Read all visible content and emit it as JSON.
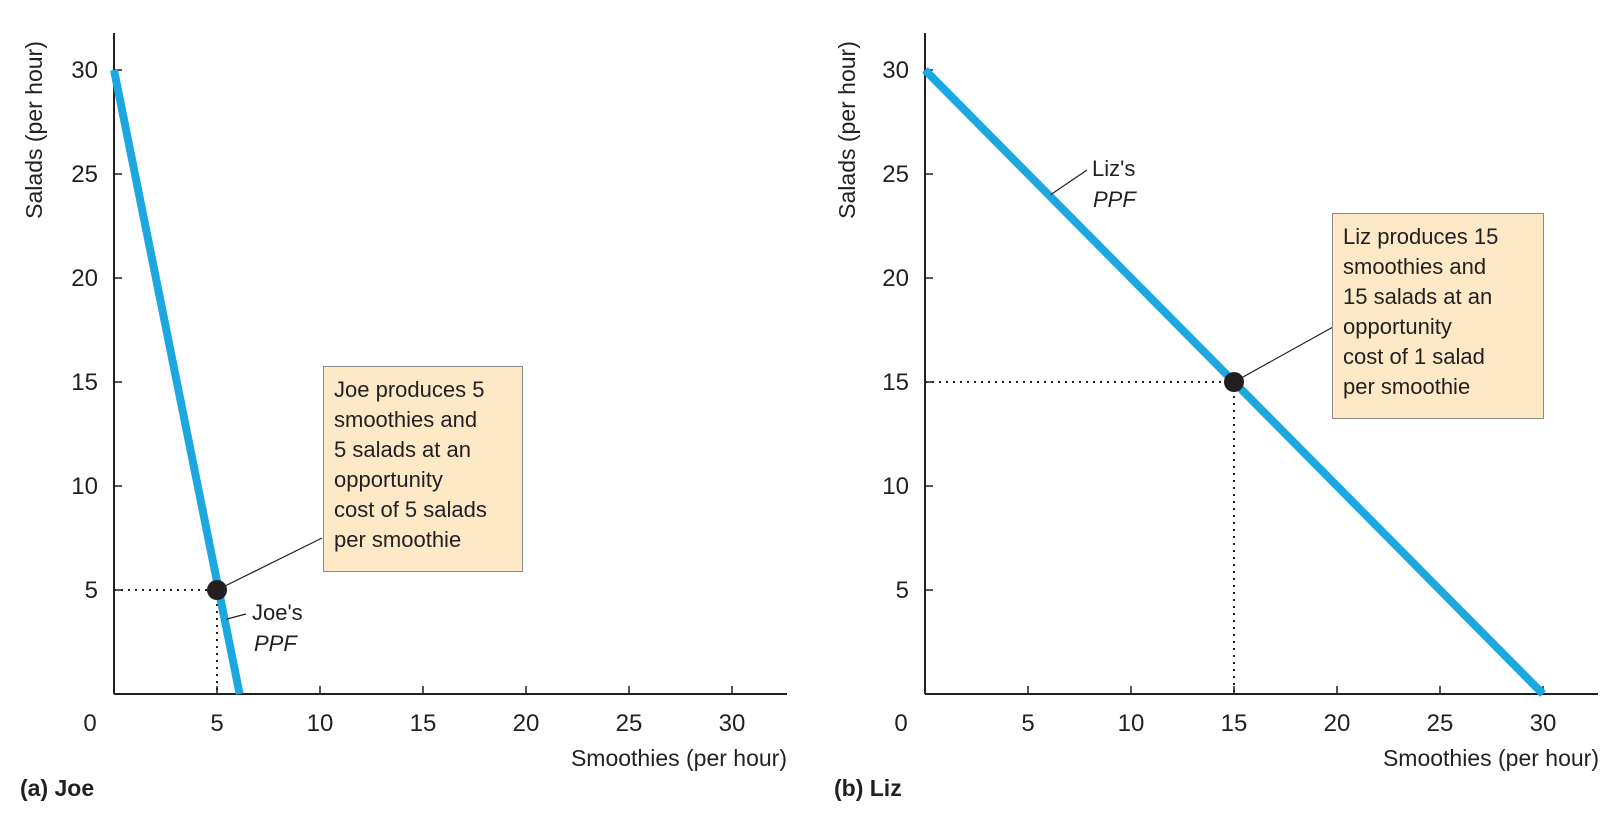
{
  "chart_data": [
    {
      "type": "line",
      "panel_label": "(a) Joe",
      "xlabel": "Smoothies (per hour)",
      "ylabel": "Salads (per hour)",
      "xlim": [
        0,
        32.5
      ],
      "ylim": [
        0,
        32
      ],
      "x_ticks": [
        "0",
        "5",
        "10",
        "15",
        "20",
        "25",
        "30"
      ],
      "y_ticks": [
        "5",
        "10",
        "15",
        "20",
        "25",
        "30"
      ],
      "series": [
        {
          "name": "Joe's PPF",
          "color": "#1ba7e0",
          "x": [
            0,
            6.1
          ],
          "y": [
            30,
            0
          ]
        }
      ],
      "point": {
        "x": 5,
        "y": 5
      },
      "curve_label": {
        "line1": "Joe's",
        "line2": "PPF"
      },
      "annotation": [
        "Joe produces 5",
        "smoothies and",
        "5 salads at an",
        "opportunity",
        "cost of 5 salads",
        "per smoothie"
      ]
    },
    {
      "type": "line",
      "panel_label": "(b) Liz",
      "xlabel": "Smoothies (per hour)",
      "ylabel": "Salads (per hour)",
      "xlim": [
        0,
        32.5
      ],
      "ylim": [
        0,
        32
      ],
      "x_ticks": [
        "0",
        "5",
        "10",
        "15",
        "20",
        "25",
        "30"
      ],
      "y_ticks": [
        "5",
        "10",
        "15",
        "20",
        "25",
        "30"
      ],
      "series": [
        {
          "name": "Liz's PPF",
          "color": "#1ba7e0",
          "x": [
            0,
            30
          ],
          "y": [
            30,
            0
          ]
        }
      ],
      "point": {
        "x": 15,
        "y": 15
      },
      "curve_label": {
        "line1": "Liz's",
        "line2": "PPF"
      },
      "annotation": [
        "Liz produces 15",
        "smoothies and",
        "15 salads at an",
        "opportunity",
        "cost of 1 salad",
        "per smoothie"
      ]
    }
  ]
}
